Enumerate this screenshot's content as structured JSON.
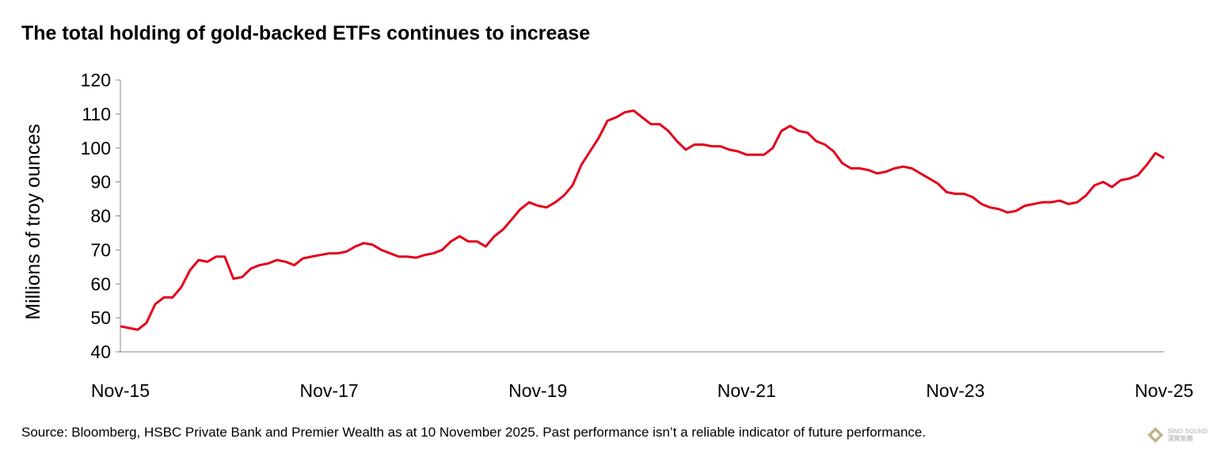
{
  "title": "The total holding of gold-backed ETFs continues to increase",
  "source": "Source: Bloomberg, HSBC Private Bank and Premier Wealth as at 10 November 2025. Past performance isn’t a reliable indicator of future performance.",
  "watermark": {
    "text": "SINO SOUND",
    "subtext": "漢聲集團"
  },
  "chart_data": {
    "type": "line",
    "title": "The total holding of gold-backed ETFs continues to increase",
    "xlabel": "",
    "ylabel": "Millions of troy ounces",
    "ylim": [
      40,
      120
    ],
    "yticks": [
      40,
      50,
      60,
      70,
      80,
      90,
      100,
      110,
      120
    ],
    "xticks": [
      "Nov-15",
      "Nov-17",
      "Nov-19",
      "Nov-21",
      "Nov-23",
      "Nov-25"
    ],
    "xlim": [
      "2015-11",
      "2025-11"
    ],
    "grid": false,
    "line_color": "#e4001b",
    "x": [
      "2015-11",
      "2015-12",
      "2016-01",
      "2016-02",
      "2016-03",
      "2016-04",
      "2016-05",
      "2016-06",
      "2016-07",
      "2016-08",
      "2016-09",
      "2016-10",
      "2016-11",
      "2016-12",
      "2017-01",
      "2017-02",
      "2017-03",
      "2017-04",
      "2017-05",
      "2017-06",
      "2017-07",
      "2017-08",
      "2017-09",
      "2017-10",
      "2017-11",
      "2017-12",
      "2018-01",
      "2018-02",
      "2018-03",
      "2018-04",
      "2018-05",
      "2018-06",
      "2018-07",
      "2018-08",
      "2018-09",
      "2018-10",
      "2018-11",
      "2018-12",
      "2019-01",
      "2019-02",
      "2019-03",
      "2019-04",
      "2019-05",
      "2019-06",
      "2019-07",
      "2019-08",
      "2019-09",
      "2019-10",
      "2019-11",
      "2019-12",
      "2020-01",
      "2020-02",
      "2020-03",
      "2020-04",
      "2020-05",
      "2020-06",
      "2020-07",
      "2020-08",
      "2020-09",
      "2020-10",
      "2020-11",
      "2020-12",
      "2021-01",
      "2021-02",
      "2021-03",
      "2021-04",
      "2021-05",
      "2021-06",
      "2021-07",
      "2021-08",
      "2021-09",
      "2021-10",
      "2021-11",
      "2021-12",
      "2022-01",
      "2022-02",
      "2022-03",
      "2022-04",
      "2022-05",
      "2022-06",
      "2022-07",
      "2022-08",
      "2022-09",
      "2022-10",
      "2022-11",
      "2022-12",
      "2023-01",
      "2023-02",
      "2023-03",
      "2023-04",
      "2023-05",
      "2023-06",
      "2023-07",
      "2023-08",
      "2023-09",
      "2023-10",
      "2023-11",
      "2023-12",
      "2024-01",
      "2024-02",
      "2024-03",
      "2024-04",
      "2024-05",
      "2024-06",
      "2024-07",
      "2024-08",
      "2024-09",
      "2024-10",
      "2024-11",
      "2024-12",
      "2025-01",
      "2025-02",
      "2025-03",
      "2025-04",
      "2025-05",
      "2025-06",
      "2025-07",
      "2025-08",
      "2025-09",
      "2025-10",
      "2025-11"
    ],
    "values": [
      47.5,
      47,
      46.5,
      48.5,
      54,
      56,
      56,
      59,
      64,
      67,
      66.5,
      68,
      68,
      61.5,
      62,
      64.5,
      65.5,
      66,
      67,
      66.5,
      65.5,
      67.5,
      68,
      68.5,
      69,
      69,
      69.5,
      71,
      72,
      71.5,
      70,
      69,
      68,
      68,
      67.7,
      68.5,
      69,
      70,
      72.5,
      74,
      72.5,
      72.5,
      71,
      74,
      76,
      79,
      82,
      84,
      83,
      82.5,
      84,
      86,
      89,
      95,
      99,
      103,
      108,
      109,
      110.5,
      111,
      109,
      107,
      107,
      105,
      102,
      99.5,
      101,
      101,
      100.5,
      100.5,
      99.5,
      99,
      98,
      98,
      98,
      100,
      105,
      106.5,
      105,
      104.5,
      102,
      101,
      99,
      95.5,
      94,
      94,
      93.5,
      92.5,
      93,
      94,
      94.5,
      94,
      92.5,
      91,
      89.5,
      87,
      86.5,
      86.5,
      85.5,
      83.5,
      82.5,
      82,
      81,
      81.5,
      83,
      83.5,
      84,
      84,
      84.5,
      83.5,
      84,
      86,
      89,
      90,
      88.5,
      90.5,
      91,
      92,
      95,
      98.5,
      97
    ]
  }
}
